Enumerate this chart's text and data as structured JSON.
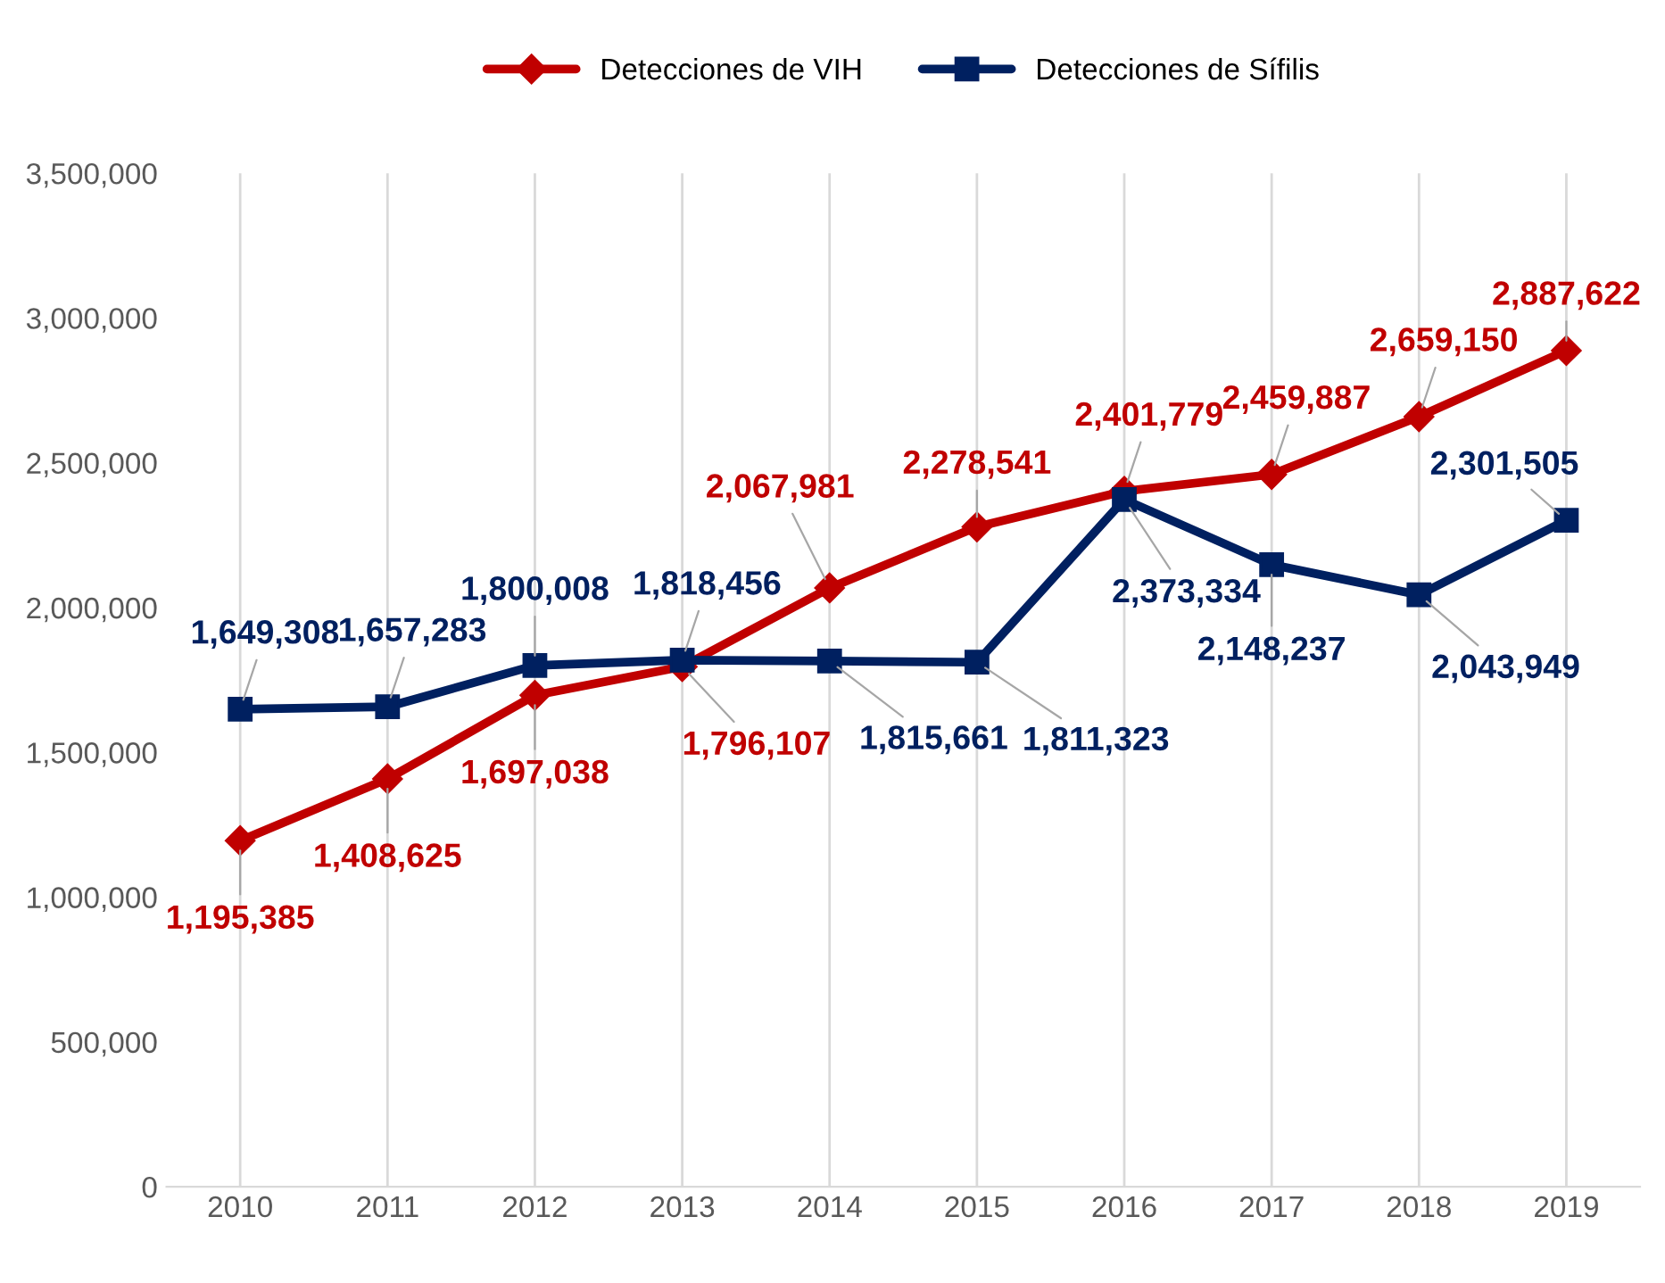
{
  "chart_data": {
    "type": "line",
    "categories": [
      "2010",
      "2011",
      "2012",
      "2013",
      "2014",
      "2015",
      "2016",
      "2017",
      "2018",
      "2019"
    ],
    "series": [
      {
        "name": "Detecciones de VIH",
        "color": "#c00000",
        "marker": "diamond",
        "values": [
          1195385,
          1408625,
          1697038,
          1796107,
          2067981,
          2278541,
          2401779,
          2459887,
          2659150,
          2887622
        ],
        "value_labels": [
          "1,195,385",
          "1,408,625",
          "1,697,038",
          "1,796,107",
          "2,067,981",
          "2,278,541",
          "2,401,779",
          "2,459,887",
          "2,659,150",
          "2,887,622"
        ]
      },
      {
        "name": "Detecciones de Sífilis",
        "color": "#002060",
        "marker": "square",
        "values": [
          1649308,
          1657283,
          1800008,
          1818456,
          1815661,
          1811323,
          2373334,
          2148237,
          2043949,
          2301505
        ],
        "value_labels": [
          "1,649,308",
          "1,657,283",
          "1,800,008",
          "1,818,456",
          "1,815,661",
          "1,811,323",
          "2,373,334",
          "2,148,237",
          "2,043,949",
          "2,301,505"
        ]
      }
    ],
    "ylim": [
      0,
      3500000
    ],
    "yticks": [
      0,
      {
        "value": 500000,
        "label": "500,000"
      },
      {
        "value": 1000000,
        "label": "1,000,000"
      },
      {
        "value": 1500000,
        "label": "1,500,000"
      },
      {
        "value": 2000000,
        "label": "2,000,000"
      },
      {
        "value": 2500000,
        "label": "2,500,000"
      },
      {
        "value": 3000000,
        "label": "3,000,000"
      },
      {
        "value": 3500000,
        "label": "3,500,000"
      }
    ],
    "grid": "x",
    "legend": "top",
    "line_style": "solid"
  }
}
